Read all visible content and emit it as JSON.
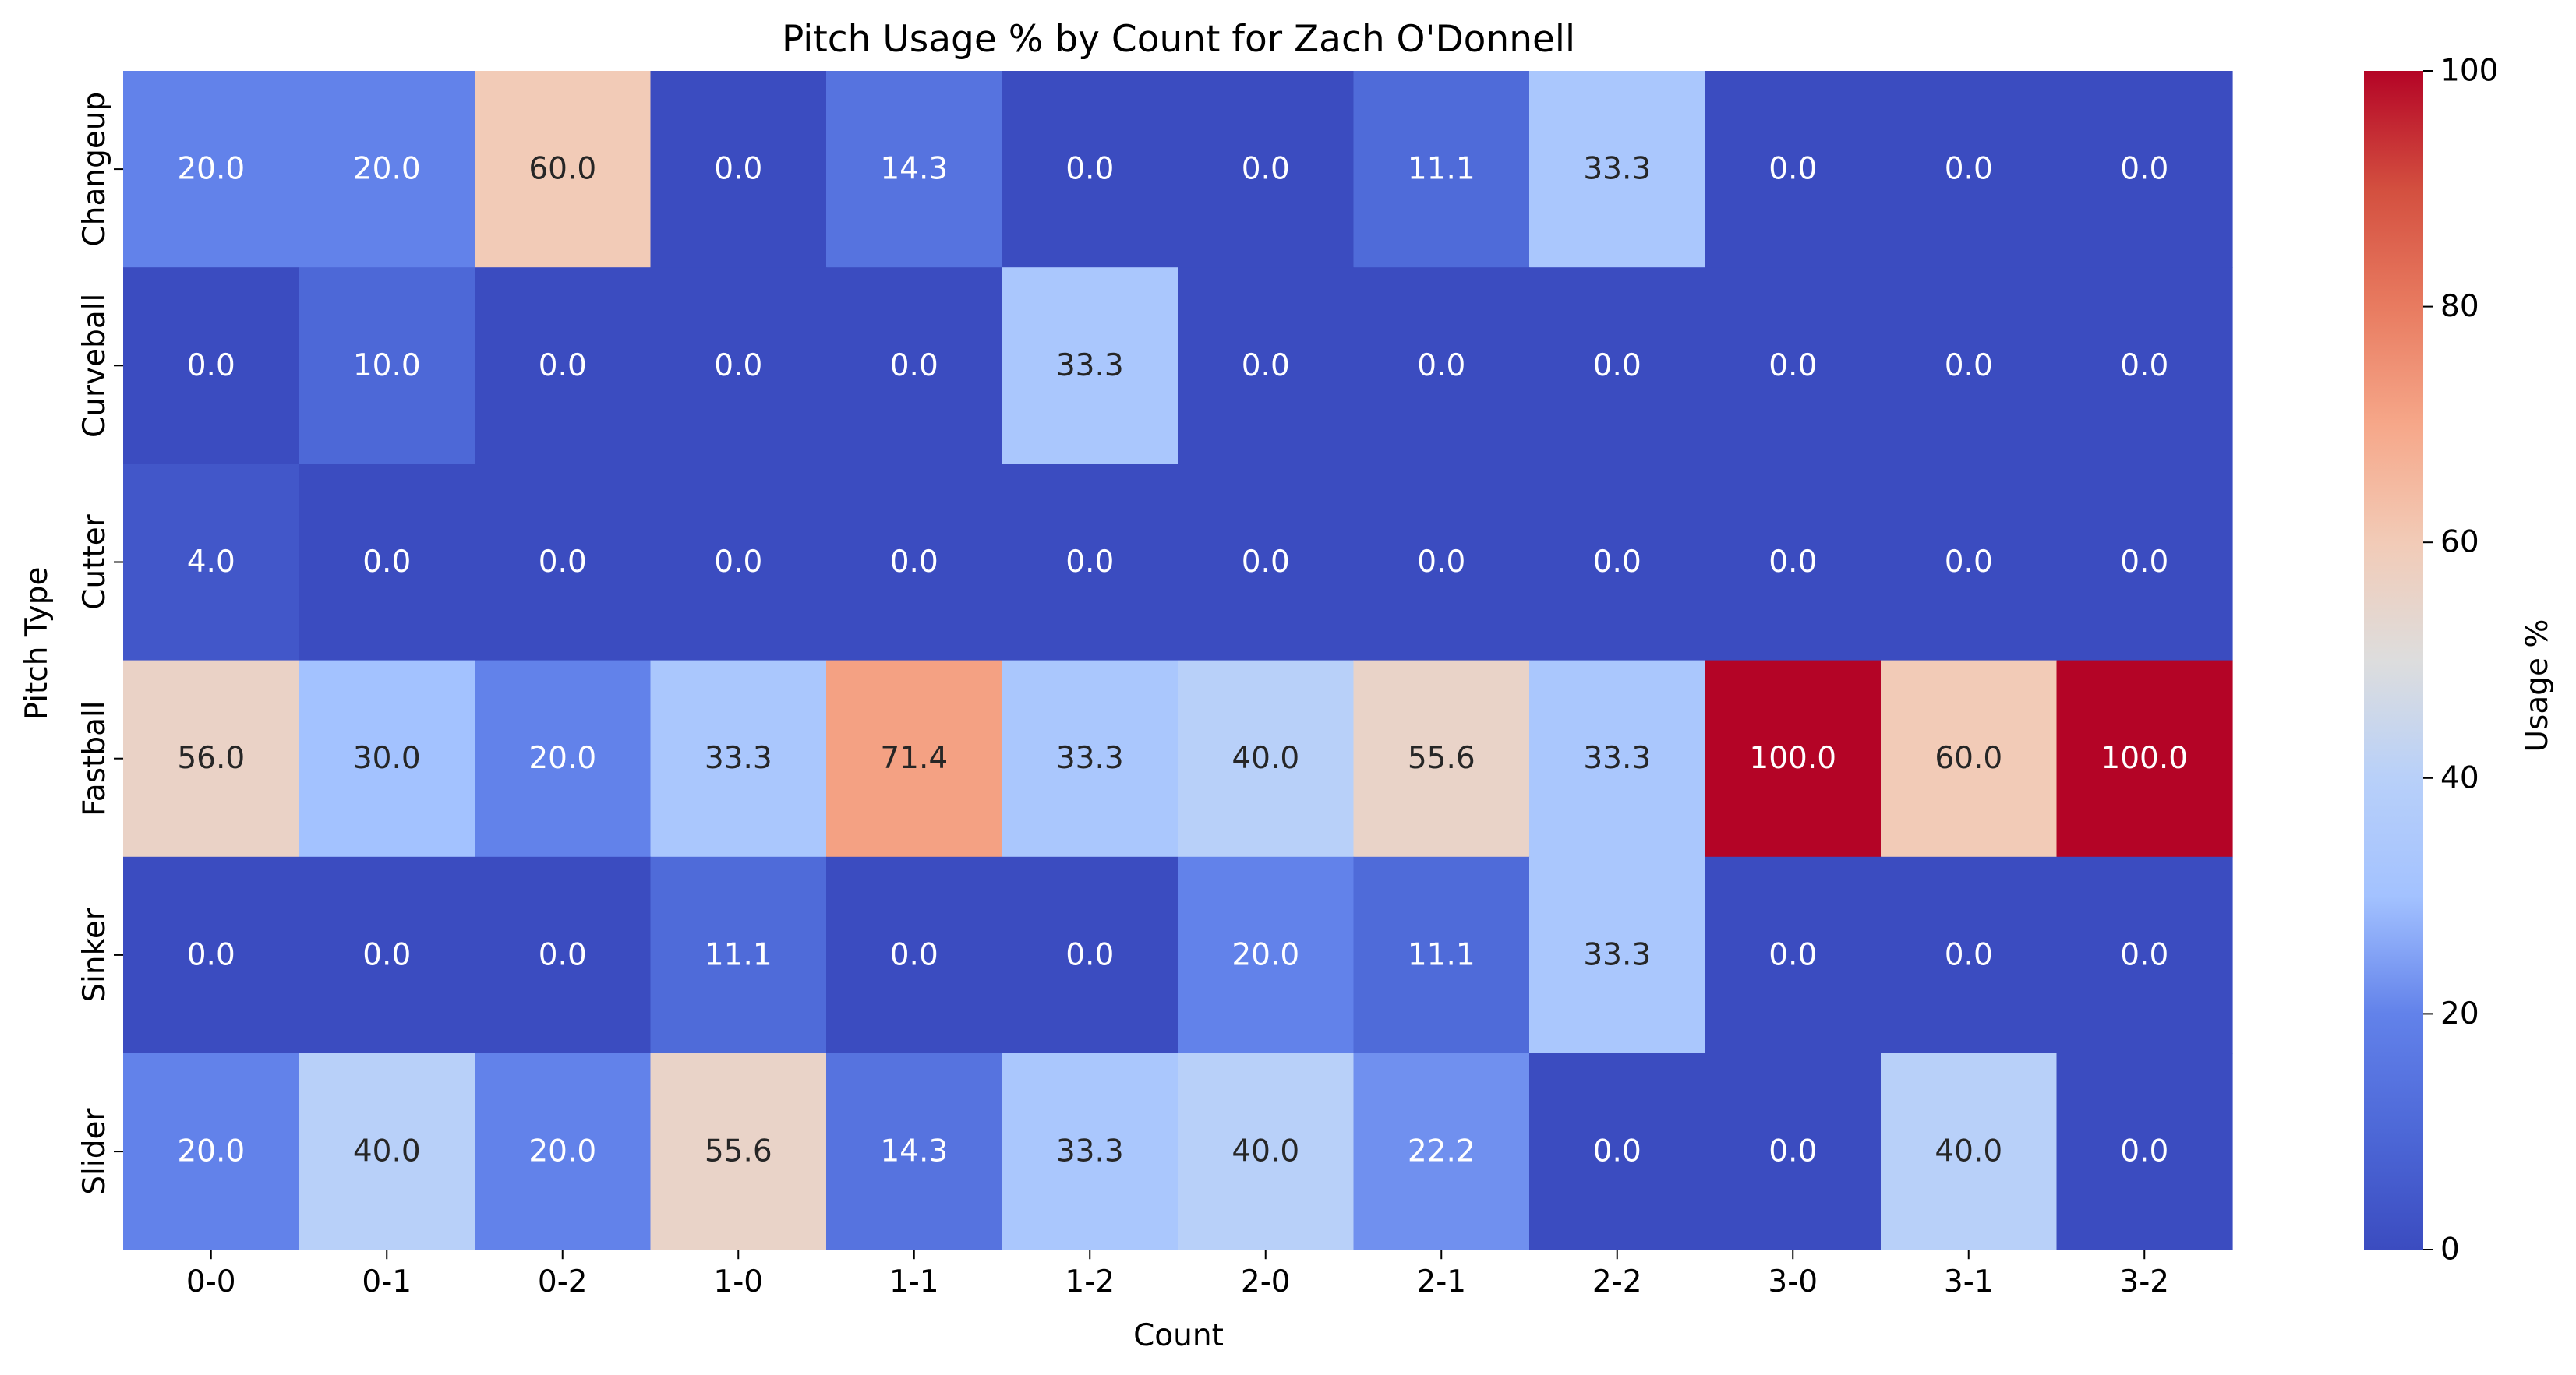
{
  "chart_data": {
    "type": "heatmap",
    "title": "Pitch Usage % by Count for Zach O'Donnell",
    "xlabel": "Count",
    "ylabel": "Pitch Type",
    "x_categories": [
      "0-0",
      "0-1",
      "0-2",
      "1-0",
      "1-1",
      "1-2",
      "2-0",
      "2-1",
      "2-2",
      "3-0",
      "3-1",
      "3-2"
    ],
    "y_categories": [
      "Changeup",
      "Curveball",
      "Cutter",
      "Fastball",
      "Sinker",
      "Slider"
    ],
    "values": [
      [
        20.0,
        20.0,
        60.0,
        0.0,
        14.3,
        0.0,
        0.0,
        11.1,
        33.3,
        0.0,
        0.0,
        0.0
      ],
      [
        0.0,
        10.0,
        0.0,
        0.0,
        0.0,
        33.3,
        0.0,
        0.0,
        0.0,
        0.0,
        0.0,
        0.0
      ],
      [
        4.0,
        0.0,
        0.0,
        0.0,
        0.0,
        0.0,
        0.0,
        0.0,
        0.0,
        0.0,
        0.0,
        0.0
      ],
      [
        56.0,
        30.0,
        20.0,
        33.3,
        71.4,
        33.3,
        40.0,
        55.6,
        33.3,
        100.0,
        60.0,
        100.0
      ],
      [
        0.0,
        0.0,
        0.0,
        11.1,
        0.0,
        0.0,
        20.0,
        11.1,
        33.3,
        0.0,
        0.0,
        0.0
      ],
      [
        20.0,
        40.0,
        20.0,
        55.6,
        14.3,
        33.3,
        40.0,
        22.2,
        0.0,
        0.0,
        40.0,
        0.0
      ]
    ],
    "value_format": "0.0",
    "colormap": "coolwarm",
    "colorbar": {
      "label": "Usage %",
      "range": [
        0,
        100
      ],
      "ticks": [
        0,
        20,
        40,
        60,
        80,
        100
      ]
    },
    "grid": false
  }
}
